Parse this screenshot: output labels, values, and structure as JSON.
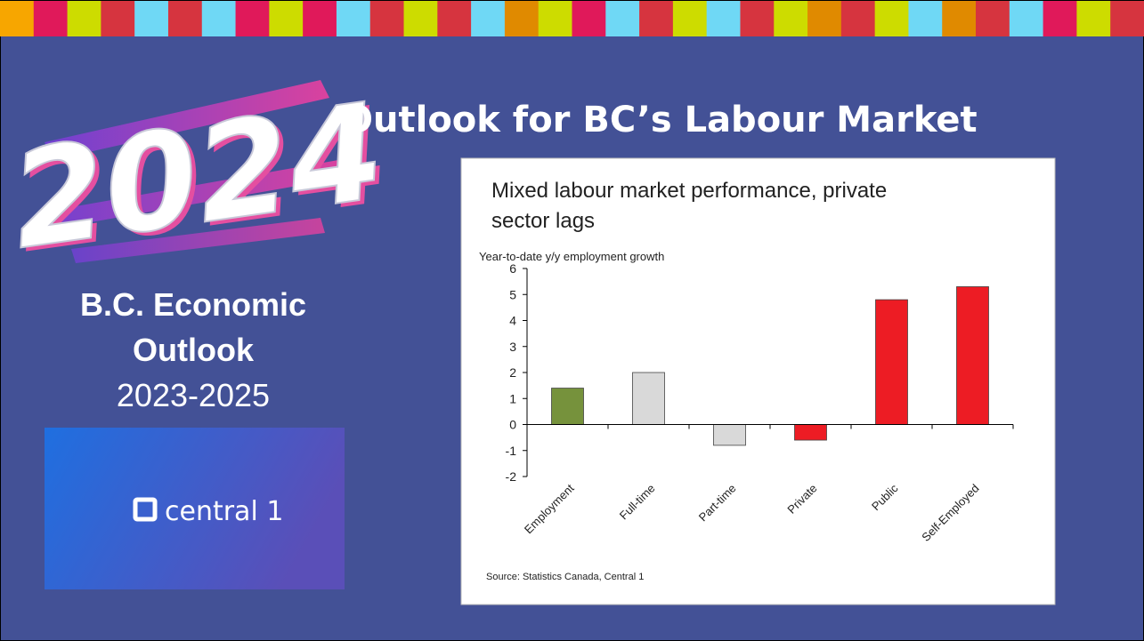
{
  "logo_year": "2024",
  "title": "Outlook for BC’s Labour Market",
  "sidebar": {
    "line1": "B.C. Economic",
    "line2": "Outlook",
    "years": "2023-2025"
  },
  "brand": "central 1",
  "chart_data": {
    "type": "bar",
    "title": "Mixed labour market performance, private sector lags",
    "y_label": "Year-to-date y/y employment growth",
    "categories": [
      "Employment",
      "Full-time",
      "Part-time",
      "Private",
      "Public",
      "Self-Employed"
    ],
    "values": [
      1.4,
      2.0,
      -0.8,
      -0.6,
      4.8,
      5.3
    ],
    "colors": [
      "#76923c",
      "#d9d9d9",
      "#d9d9d9",
      "#ed1c24",
      "#ed1c24",
      "#ed1c24"
    ],
    "ylim": [
      -2,
      6
    ],
    "yticks": [
      -2,
      -1,
      0,
      1,
      2,
      3,
      4,
      5,
      6
    ],
    "source": "Source: Statistics Canada, Central 1"
  }
}
